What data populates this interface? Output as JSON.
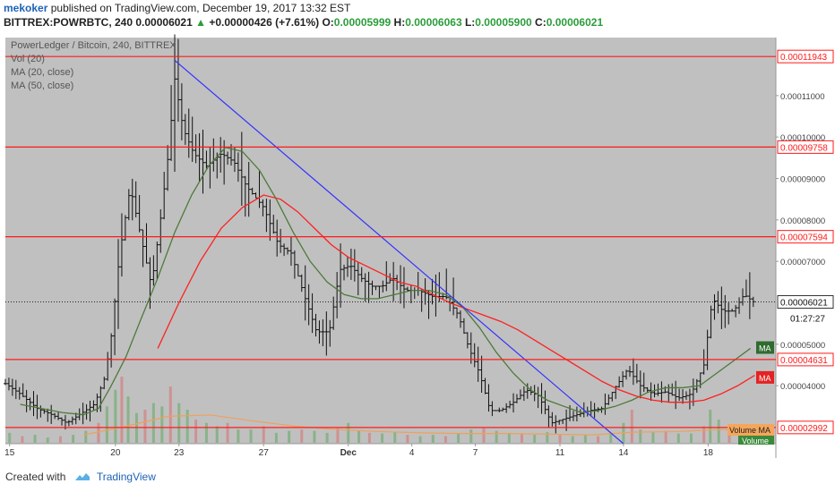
{
  "header": {
    "user": "mekoker",
    "published": "published on TradingView.com, December 19, 2017 13:32 EST",
    "symbol": "BITTREX:POWRBTC, 240",
    "price": "0.00006021",
    "change_arrow": "▲",
    "change": "+0.00000426 (+7.61%)",
    "o_label": "O:",
    "o": "0.00005999",
    "h_label": "H:",
    "h": "0.00006063",
    "l_label": "L:",
    "l": "0.00005900",
    "c_label": "C:",
    "c": "0.00006021"
  },
  "footer": {
    "created": "Created with",
    "brand": "TradingView"
  },
  "colors": {
    "background": "#c0c0c0",
    "hline": "#ff1a1a",
    "trendline": "#3333ff",
    "ma20": "#4d7a3a",
    "ma50": "#ff2020",
    "candles": "#111111",
    "vol_up": "#7fb07f",
    "vol_down": "#d08a8a",
    "vol_ma": "#f0a05a"
  },
  "chart_data": {
    "type": "candlestick",
    "legend": [
      "PowerLedger / Bitcoin, 240, BITTREX",
      "Vol (20)",
      "MA (20, close)",
      "MA (50, close)"
    ],
    "x_ticks": [
      {
        "label": "15",
        "day": 15
      },
      {
        "label": "20",
        "day": 20
      },
      {
        "label": "23",
        "day": 23
      },
      {
        "label": "27",
        "day": 27
      },
      {
        "label": "Dec",
        "day": 31
      },
      {
        "label": "4",
        "day": 34
      },
      {
        "label": "7",
        "day": 37
      },
      {
        "label": "11",
        "day": 41
      },
      {
        "label": "14",
        "day": 44
      },
      {
        "label": "18",
        "day": 48
      }
    ],
    "x_range": [
      14.8,
      51.2
    ],
    "y_range": [
      2.6e-05,
      0.000124
    ],
    "y_ticks": [
      {
        "label": "0.00011000",
        "value": 0.00011
      },
      {
        "label": "0.00010000",
        "value": 0.0001
      },
      {
        "label": "0.00009000",
        "value": 9e-05
      },
      {
        "label": "0.00008000",
        "value": 8e-05
      },
      {
        "label": "0.00007000",
        "value": 7e-05
      },
      {
        "label": "0.00005000",
        "value": 5e-05
      },
      {
        "label": "0.00004000",
        "value": 4e-05
      }
    ],
    "horizontal_levels": [
      {
        "label": "0.00011943",
        "value": 0.00011943
      },
      {
        "label": "0.00009758",
        "value": 9.758e-05
      },
      {
        "label": "0.00007594",
        "value": 7.594e-05
      },
      {
        "label": "0.00004631",
        "value": 4.631e-05
      },
      {
        "label": "0.00002992",
        "value": 2.992e-05
      }
    ],
    "last_price": {
      "label": "0.00006021",
      "value": 6.021e-05
    },
    "countdown": "01:27:27",
    "ma_tags": [
      {
        "label": "MA",
        "value": 4.92e-05,
        "series": "ma20"
      },
      {
        "label": "MA",
        "value": 4.2e-05,
        "series": "ma50"
      }
    ],
    "volume_tags": [
      "Volume MA",
      "Volume"
    ],
    "trendline": [
      {
        "day": 22.8,
        "value": 0.0001185
      },
      {
        "day": 44.0,
        "value": 2.6e-05
      }
    ],
    "close_path": [
      [
        14.8,
        4.05e-05
      ],
      [
        15.5,
        3.8e-05
      ],
      [
        16.3,
        3.45e-05
      ],
      [
        17,
        3.3e-05
      ],
      [
        17.7,
        3.1e-05
      ],
      [
        18.3,
        3.3e-05
      ],
      [
        19,
        3.55e-05
      ],
      [
        19.5,
        4.2e-05
      ],
      [
        19.8,
        5.2e-05
      ],
      [
        20.2,
        7.2e-05
      ],
      [
        20.7,
        8.8e-05
      ],
      [
        21.2,
        7.6e-05
      ],
      [
        21.7,
        6.4e-05
      ],
      [
        22.1,
        7.9e-05
      ],
      [
        22.5,
        9.6e-05
      ],
      [
        22.8,
        0.000114
      ],
      [
        23.2,
        0.000102
      ],
      [
        23.7,
        9.6e-05
      ],
      [
        24.3,
        9.3e-05
      ],
      [
        25,
        9.6e-05
      ],
      [
        25.6,
        9.4e-05
      ],
      [
        26.2,
        8.8e-05
      ],
      [
        27,
        8.3e-05
      ],
      [
        27.7,
        7.4e-05
      ],
      [
        28.3,
        7.2e-05
      ],
      [
        28.9,
        6.2e-05
      ],
      [
        29.5,
        5.3e-05
      ],
      [
        30.1,
        5.3e-05
      ],
      [
        30.6,
        6.8e-05
      ],
      [
        31.1,
        6.9e-05
      ],
      [
        31.6,
        6.6e-05
      ],
      [
        32.1,
        6.4e-05
      ],
      [
        32.6,
        6.4e-05
      ],
      [
        33.1,
        6.6e-05
      ],
      [
        33.7,
        6.3e-05
      ],
      [
        34.3,
        6.3e-05
      ],
      [
        35,
        6.15e-05
      ],
      [
        35.6,
        6.15e-05
      ],
      [
        36.2,
        5.7e-05
      ],
      [
        36.7,
        4.9e-05
      ],
      [
        37.2,
        4.3e-05
      ],
      [
        37.7,
        3.4e-05
      ],
      [
        38.2,
        3.4e-05
      ],
      [
        38.8,
        3.6e-05
      ],
      [
        39.4,
        3.9e-05
      ],
      [
        40,
        3.75e-05
      ],
      [
        40.6,
        3.1e-05
      ],
      [
        41.2,
        3.2e-05
      ],
      [
        41.8,
        3.3e-05
      ],
      [
        42.4,
        3.4e-05
      ],
      [
        43,
        3.45e-05
      ],
      [
        43.6,
        3.95e-05
      ],
      [
        44.2,
        4.4e-05
      ],
      [
        44.8,
        4e-05
      ],
      [
        45.4,
        3.8e-05
      ],
      [
        46,
        3.85e-05
      ],
      [
        46.6,
        3.7e-05
      ],
      [
        47.2,
        3.8e-05
      ],
      [
        47.8,
        4.5e-05
      ],
      [
        48.2,
        6.1e-05
      ],
      [
        48.7,
        5.8e-05
      ],
      [
        49.2,
        5.8e-05
      ],
      [
        49.7,
        6.2e-05
      ],
      [
        50.2,
        6e-05
      ]
    ],
    "ma20": [
      [
        15.5,
        3.55e-05
      ],
      [
        16.5,
        3.45e-05
      ],
      [
        17.5,
        3.35e-05
      ],
      [
        18.5,
        3.3e-05
      ],
      [
        19.2,
        3.45e-05
      ],
      [
        19.8,
        4e-05
      ],
      [
        20.5,
        4.7e-05
      ],
      [
        21.2,
        5.6e-05
      ],
      [
        22,
        6.6e-05
      ],
      [
        22.8,
        7.7e-05
      ],
      [
        23.6,
        8.6e-05
      ],
      [
        24.4,
        9.3e-05
      ],
      [
        25.2,
        9.75e-05
      ],
      [
        26,
        9.65e-05
      ],
      [
        26.8,
        9.2e-05
      ],
      [
        27.6,
        8.5e-05
      ],
      [
        28.4,
        7.7e-05
      ],
      [
        29.2,
        7e-05
      ],
      [
        30,
        6.5e-05
      ],
      [
        30.8,
        6.2e-05
      ],
      [
        31.6,
        6.1e-05
      ],
      [
        32.4,
        6.1e-05
      ],
      [
        33.2,
        6.2e-05
      ],
      [
        34,
        6.3e-05
      ],
      [
        34.8,
        6.3e-05
      ],
      [
        35.6,
        6.2e-05
      ],
      [
        36.4,
        5.9e-05
      ],
      [
        37.2,
        5.4e-05
      ],
      [
        38,
        4.8e-05
      ],
      [
        38.8,
        4.3e-05
      ],
      [
        39.6,
        3.9e-05
      ],
      [
        40.4,
        3.65e-05
      ],
      [
        41.2,
        3.5e-05
      ],
      [
        42,
        3.35e-05
      ],
      [
        42.8,
        3.4e-05
      ],
      [
        43.6,
        3.5e-05
      ],
      [
        44.4,
        3.65e-05
      ],
      [
        45.2,
        3.85e-05
      ],
      [
        46,
        3.95e-05
      ],
      [
        46.8,
        3.95e-05
      ],
      [
        47.6,
        4e-05
      ],
      [
        48.4,
        4.3e-05
      ],
      [
        49.2,
        4.6e-05
      ],
      [
        50,
        4.9e-05
      ]
    ],
    "ma50": [
      [
        22.0,
        4.9e-05
      ],
      [
        23,
        6e-05
      ],
      [
        24,
        7e-05
      ],
      [
        25,
        7.8e-05
      ],
      [
        26,
        8.3e-05
      ],
      [
        27,
        8.6e-05
      ],
      [
        27.8,
        8.5e-05
      ],
      [
        28.6,
        8.2e-05
      ],
      [
        29.4,
        7.8e-05
      ],
      [
        30.2,
        7.4e-05
      ],
      [
        31,
        7.1e-05
      ],
      [
        31.8,
        6.9e-05
      ],
      [
        32.6,
        6.7e-05
      ],
      [
        33.4,
        6.5e-05
      ],
      [
        34.2,
        6.4e-05
      ],
      [
        35,
        6.2e-05
      ],
      [
        35.8,
        6e-05
      ],
      [
        36.6,
        5.85e-05
      ],
      [
        37.4,
        5.7e-05
      ],
      [
        38.2,
        5.55e-05
      ],
      [
        39,
        5.35e-05
      ],
      [
        39.8,
        5.1e-05
      ],
      [
        40.6,
        4.85e-05
      ],
      [
        41.4,
        4.6e-05
      ],
      [
        42.2,
        4.35e-05
      ],
      [
        43,
        4.1e-05
      ],
      [
        43.8,
        3.9e-05
      ],
      [
        44.6,
        3.75e-05
      ],
      [
        45.4,
        3.65e-05
      ],
      [
        46.2,
        3.6e-05
      ],
      [
        47,
        3.6e-05
      ],
      [
        47.8,
        3.65e-05
      ],
      [
        48.6,
        3.8e-05
      ],
      [
        49.4,
        4e-05
      ],
      [
        50.2,
        4.25e-05
      ]
    ],
    "volume": [
      [
        15,
        0.15
      ],
      [
        15.6,
        0.1
      ],
      [
        16.2,
        0.12
      ],
      [
        16.8,
        0.08
      ],
      [
        17.4,
        0.1
      ],
      [
        18,
        0.12
      ],
      [
        18.6,
        0.18
      ],
      [
        19.2,
        0.3
      ],
      [
        19.6,
        0.55
      ],
      [
        20,
        0.8
      ],
      [
        20.3,
        1.0
      ],
      [
        20.6,
        0.7
      ],
      [
        21,
        0.45
      ],
      [
        21.4,
        0.5
      ],
      [
        21.8,
        0.6
      ],
      [
        22.2,
        0.55
      ],
      [
        22.6,
        0.85
      ],
      [
        23,
        0.6
      ],
      [
        23.4,
        0.5
      ],
      [
        23.8,
        0.35
      ],
      [
        24.3,
        0.3
      ],
      [
        24.8,
        0.25
      ],
      [
        25.3,
        0.3
      ],
      [
        25.8,
        0.2
      ],
      [
        26.4,
        0.2
      ],
      [
        27,
        0.25
      ],
      [
        27.6,
        0.15
      ],
      [
        28.2,
        0.18
      ],
      [
        28.8,
        0.2
      ],
      [
        29.4,
        0.18
      ],
      [
        30,
        0.15
      ],
      [
        30.5,
        0.22
      ],
      [
        31,
        0.3
      ],
      [
        31.5,
        0.18
      ],
      [
        32,
        0.15
      ],
      [
        32.6,
        0.14
      ],
      [
        33.2,
        0.16
      ],
      [
        33.8,
        0.12
      ],
      [
        34.4,
        0.1
      ],
      [
        35,
        0.12
      ],
      [
        35.6,
        0.1
      ],
      [
        36.2,
        0.14
      ],
      [
        36.8,
        0.2
      ],
      [
        37.4,
        0.22
      ],
      [
        38,
        0.18
      ],
      [
        38.6,
        0.15
      ],
      [
        39.2,
        0.14
      ],
      [
        39.8,
        0.12
      ],
      [
        40.4,
        0.16
      ],
      [
        41,
        0.12
      ],
      [
        41.6,
        0.1
      ],
      [
        42.2,
        0.12
      ],
      [
        42.8,
        0.1
      ],
      [
        43.4,
        0.14
      ],
      [
        44,
        0.3
      ],
      [
        44.4,
        0.5
      ],
      [
        44.8,
        0.2
      ],
      [
        45.4,
        0.16
      ],
      [
        46,
        0.18
      ],
      [
        46.6,
        0.14
      ],
      [
        47.2,
        0.14
      ],
      [
        47.8,
        0.25
      ],
      [
        48.1,
        0.5
      ],
      [
        48.5,
        0.35
      ],
      [
        49,
        0.2
      ],
      [
        49.5,
        0.15
      ],
      [
        50,
        0.12
      ]
    ],
    "volume_ma": [
      [
        18.5,
        0.12
      ],
      [
        20.5,
        0.25
      ],
      [
        22.5,
        0.4
      ],
      [
        24.5,
        0.42
      ],
      [
        26.5,
        0.33
      ],
      [
        28.5,
        0.25
      ],
      [
        30.5,
        0.2
      ],
      [
        32.5,
        0.17
      ],
      [
        34.5,
        0.15
      ],
      [
        36.5,
        0.14
      ],
      [
        38.5,
        0.14
      ],
      [
        40.5,
        0.13
      ],
      [
        42.5,
        0.12
      ],
      [
        44.5,
        0.16
      ],
      [
        46.5,
        0.17
      ],
      [
        48.5,
        0.2
      ],
      [
        50.2,
        0.18
      ]
    ]
  }
}
